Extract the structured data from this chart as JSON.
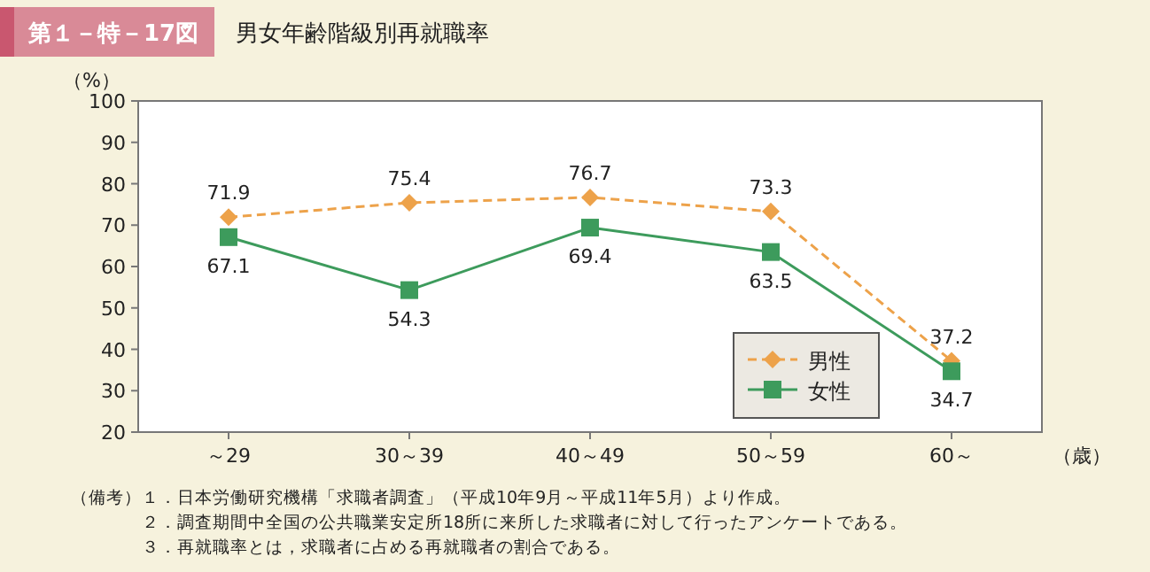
{
  "chart_data": {
    "type": "line",
    "subtitle": "第１－特－17図",
    "title": "男女年齢階級別再就職率",
    "ylabel": "（%）",
    "xlabel": "（歳）",
    "categories": [
      "～29",
      "30～39",
      "40～49",
      "50～59",
      "60～"
    ],
    "series": [
      {
        "name": "男性",
        "color": "#eda24a",
        "values": [
          71.9,
          75.4,
          76.7,
          73.3,
          37.2
        ],
        "marker": "diamond",
        "line_style": "dashed"
      },
      {
        "name": "女性",
        "color": "#3d9b5c",
        "values": [
          67.1,
          54.3,
          69.4,
          63.5,
          34.7
        ],
        "marker": "square",
        "line_style": "solid"
      }
    ],
    "ylim": [
      20,
      100
    ],
    "yticks": [
      20,
      30,
      40,
      50,
      60,
      70,
      80,
      90,
      100
    ],
    "data_labels": true,
    "legend": "bottom right",
    "grid": false,
    "annotations": [
      "（備考）",
      "１．日本労働研究機構「求職者調査」（平成10年9月～平成11年5月）より作成。",
      "２．調査期間中全国の公共職業安定所18所に来所した求職者に対して行ったアンケートである。",
      "３．再就職率とは，求職者に占める再就職者の割合である。"
    ]
  }
}
